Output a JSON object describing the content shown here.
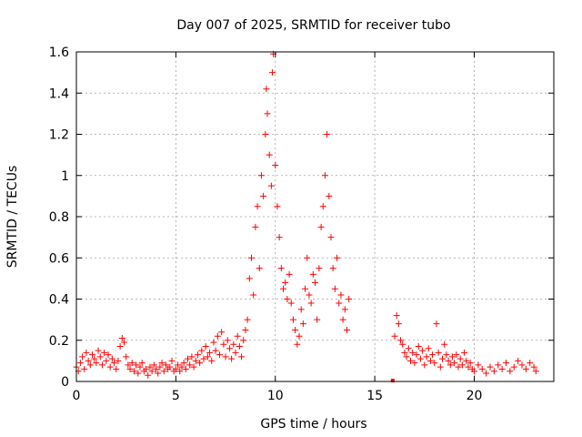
{
  "chart_data": {
    "type": "scatter",
    "title": "Day 007 of 2025, SRMTID for receiver tubo",
    "xlabel": "GPS time / hours",
    "ylabel": "SRMTID / TECUs",
    "xlim": [
      0,
      24
    ],
    "ylim": [
      0,
      1.6
    ],
    "x_ticks": [
      0,
      5,
      10,
      15,
      20
    ],
    "x_tick_labels": [
      "0",
      "5",
      "10",
      "15",
      "20"
    ],
    "y_ticks": [
      0,
      0.2,
      0.4,
      0.6,
      0.8,
      1.0,
      1.2,
      1.4,
      1.6
    ],
    "y_tick_labels": [
      "0",
      "0.2",
      "0.4",
      "0.6",
      "0.8",
      "1",
      "1.2",
      "1.4",
      "1.6"
    ],
    "grid": true,
    "marker": "plus",
    "color": "#ff0000",
    "series": [
      {
        "name": "SRMTID",
        "points": [
          [
            0.0,
            0.07
          ],
          [
            0.1,
            0.05
          ],
          [
            0.2,
            0.09
          ],
          [
            0.3,
            0.12
          ],
          [
            0.4,
            0.06
          ],
          [
            0.5,
            0.14
          ],
          [
            0.6,
            0.1
          ],
          [
            0.7,
            0.08
          ],
          [
            0.8,
            0.13
          ],
          [
            0.9,
            0.11
          ],
          [
            1.0,
            0.09
          ],
          [
            1.1,
            0.15
          ],
          [
            1.2,
            0.12
          ],
          [
            1.3,
            0.08
          ],
          [
            1.4,
            0.14
          ],
          [
            1.5,
            0.1
          ],
          [
            1.6,
            0.13
          ],
          [
            1.7,
            0.07
          ],
          [
            1.8,
            0.11
          ],
          [
            1.9,
            0.09
          ],
          [
            2.0,
            0.06
          ],
          [
            2.1,
            0.1
          ],
          [
            2.2,
            0.17
          ],
          [
            2.3,
            0.21
          ],
          [
            2.4,
            0.19
          ],
          [
            2.5,
            0.12
          ],
          [
            2.6,
            0.08
          ],
          [
            2.7,
            0.06
          ],
          [
            2.8,
            0.09
          ],
          [
            2.9,
            0.05
          ],
          [
            3.0,
            0.08
          ],
          [
            3.1,
            0.04
          ],
          [
            3.2,
            0.07
          ],
          [
            3.3,
            0.09
          ],
          [
            3.4,
            0.05
          ],
          [
            3.5,
            0.06
          ],
          [
            3.6,
            0.03
          ],
          [
            3.7,
            0.07
          ],
          [
            3.8,
            0.05
          ],
          [
            3.9,
            0.08
          ],
          [
            4.0,
            0.06
          ],
          [
            4.1,
            0.04
          ],
          [
            4.2,
            0.07
          ],
          [
            4.3,
            0.09
          ],
          [
            4.4,
            0.05
          ],
          [
            4.5,
            0.08
          ],
          [
            4.6,
            0.06
          ],
          [
            4.7,
            0.07
          ],
          [
            4.8,
            0.1
          ],
          [
            4.9,
            0.05
          ],
          [
            5.0,
            0.06
          ],
          [
            5.1,
            0.08
          ],
          [
            5.2,
            0.05
          ],
          [
            5.3,
            0.07
          ],
          [
            5.4,
            0.09
          ],
          [
            5.5,
            0.06
          ],
          [
            5.6,
            0.11
          ],
          [
            5.7,
            0.08
          ],
          [
            5.8,
            0.12
          ],
          [
            5.9,
            0.07
          ],
          [
            6.0,
            0.1
          ],
          [
            6.1,
            0.13
          ],
          [
            6.2,
            0.09
          ],
          [
            6.3,
            0.15
          ],
          [
            6.4,
            0.11
          ],
          [
            6.5,
            0.17
          ],
          [
            6.6,
            0.12
          ],
          [
            6.7,
            0.14
          ],
          [
            6.8,
            0.1
          ],
          [
            6.9,
            0.19
          ],
          [
            7.0,
            0.15
          ],
          [
            7.1,
            0.22
          ],
          [
            7.2,
            0.13
          ],
          [
            7.3,
            0.24
          ],
          [
            7.4,
            0.18
          ],
          [
            7.5,
            0.12
          ],
          [
            7.6,
            0.2
          ],
          [
            7.7,
            0.16
          ],
          [
            7.8,
            0.11
          ],
          [
            7.9,
            0.18
          ],
          [
            8.0,
            0.14
          ],
          [
            8.1,
            0.22
          ],
          [
            8.2,
            0.17
          ],
          [
            8.3,
            0.12
          ],
          [
            8.4,
            0.2
          ],
          [
            8.5,
            0.25
          ],
          [
            8.6,
            0.3
          ],
          [
            8.7,
            0.5
          ],
          [
            8.8,
            0.6
          ],
          [
            8.9,
            0.42
          ],
          [
            9.0,
            0.75
          ],
          [
            9.1,
            0.85
          ],
          [
            9.2,
            0.55
          ],
          [
            9.3,
            1.0
          ],
          [
            9.4,
            0.9
          ],
          [
            9.5,
            1.2
          ],
          [
            9.55,
            1.42
          ],
          [
            9.6,
            1.3
          ],
          [
            9.7,
            1.1
          ],
          [
            9.8,
            0.95
          ],
          [
            9.85,
            1.5
          ],
          [
            9.9,
            1.59
          ],
          [
            10.0,
            1.05
          ],
          [
            10.1,
            0.85
          ],
          [
            10.2,
            0.7
          ],
          [
            10.3,
            0.55
          ],
          [
            10.4,
            0.45
          ],
          [
            10.5,
            0.48
          ],
          [
            10.6,
            0.4
          ],
          [
            10.7,
            0.52
          ],
          [
            10.8,
            0.38
          ],
          [
            10.9,
            0.3
          ],
          [
            11.0,
            0.25
          ],
          [
            11.1,
            0.18
          ],
          [
            11.2,
            0.22
          ],
          [
            11.3,
            0.35
          ],
          [
            11.4,
            0.28
          ],
          [
            11.5,
            0.45
          ],
          [
            11.6,
            0.6
          ],
          [
            11.7,
            0.42
          ],
          [
            11.8,
            0.38
          ],
          [
            11.9,
            0.52
          ],
          [
            12.0,
            0.48
          ],
          [
            12.1,
            0.3
          ],
          [
            12.2,
            0.55
          ],
          [
            12.3,
            0.75
          ],
          [
            12.4,
            0.85
          ],
          [
            12.5,
            1.0
          ],
          [
            12.6,
            1.2
          ],
          [
            12.7,
            0.9
          ],
          [
            12.8,
            0.7
          ],
          [
            12.9,
            0.55
          ],
          [
            13.0,
            0.45
          ],
          [
            13.1,
            0.6
          ],
          [
            13.2,
            0.38
          ],
          [
            13.3,
            0.42
          ],
          [
            13.4,
            0.3
          ],
          [
            13.5,
            0.35
          ],
          [
            13.6,
            0.25
          ],
          [
            13.7,
            0.4
          ],
          [
            16.0,
            0.22
          ],
          [
            16.1,
            0.32
          ],
          [
            16.2,
            0.28
          ],
          [
            16.3,
            0.2
          ],
          [
            16.4,
            0.18
          ],
          [
            16.5,
            0.14
          ],
          [
            16.6,
            0.12
          ],
          [
            16.7,
            0.16
          ],
          [
            16.8,
            0.1
          ],
          [
            16.9,
            0.14
          ],
          [
            17.0,
            0.09
          ],
          [
            17.1,
            0.13
          ],
          [
            17.2,
            0.17
          ],
          [
            17.3,
            0.11
          ],
          [
            17.4,
            0.15
          ],
          [
            17.5,
            0.08
          ],
          [
            17.6,
            0.12
          ],
          [
            17.7,
            0.16
          ],
          [
            17.8,
            0.1
          ],
          [
            17.9,
            0.13
          ],
          [
            18.0,
            0.09
          ],
          [
            18.1,
            0.28
          ],
          [
            18.2,
            0.14
          ],
          [
            18.3,
            0.07
          ],
          [
            18.4,
            0.11
          ],
          [
            18.5,
            0.18
          ],
          [
            18.6,
            0.13
          ],
          [
            18.7,
            0.1
          ],
          [
            18.8,
            0.08
          ],
          [
            18.9,
            0.12
          ],
          [
            19.0,
            0.09
          ],
          [
            19.1,
            0.13
          ],
          [
            19.2,
            0.07
          ],
          [
            19.3,
            0.11
          ],
          [
            19.4,
            0.08
          ],
          [
            19.5,
            0.14
          ],
          [
            19.6,
            0.1
          ],
          [
            19.7,
            0.07
          ],
          [
            19.8,
            0.09
          ],
          [
            19.9,
            0.06
          ],
          [
            20.0,
            0.05
          ],
          [
            20.2,
            0.08
          ],
          [
            20.4,
            0.06
          ],
          [
            20.6,
            0.04
          ],
          [
            20.8,
            0.07
          ],
          [
            21.0,
            0.05
          ],
          [
            21.2,
            0.08
          ],
          [
            21.4,
            0.06
          ],
          [
            21.6,
            0.09
          ],
          [
            21.8,
            0.05
          ],
          [
            22.0,
            0.07
          ],
          [
            22.2,
            0.1
          ],
          [
            22.4,
            0.08
          ],
          [
            22.6,
            0.06
          ],
          [
            22.8,
            0.09
          ],
          [
            23.0,
            0.07
          ],
          [
            23.1,
            0.05
          ]
        ]
      }
    ],
    "isolated_point": [
      15.9,
      0.0
    ]
  }
}
